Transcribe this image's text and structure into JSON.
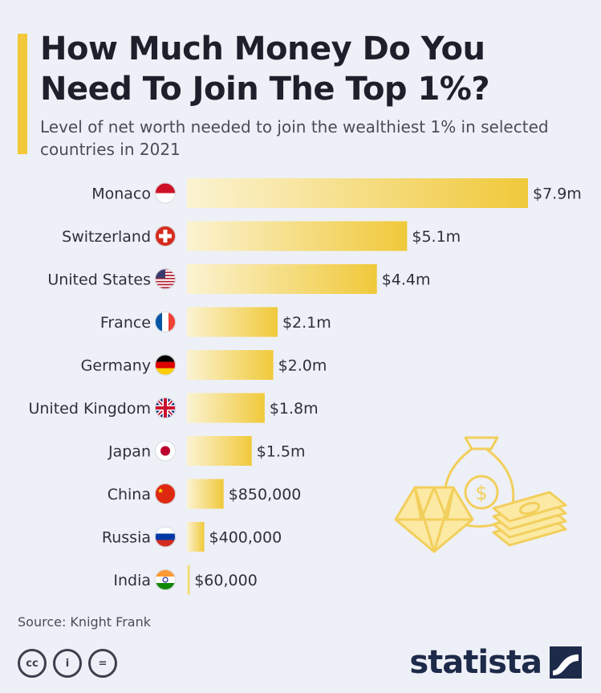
{
  "header": {
    "title": "How Much Money Do You Need To Join The Top 1%?",
    "subtitle": "Level of net worth needed to join the wealthiest 1% in selected countries in 2021"
  },
  "footer": {
    "source": "Source: Knight Frank",
    "brand": "statista",
    "license_icons": [
      "cc-icon",
      "attribution-icon",
      "no-derivatives-icon"
    ],
    "license_labels": [
      "cc",
      "i",
      "="
    ]
  },
  "colors": {
    "bar_start": "#fbf3d2",
    "bar_end": "#f0c93a",
    "accent": "#f2c73a",
    "background": "#eef0f7"
  },
  "chart_data": {
    "type": "bar",
    "orientation": "horizontal",
    "categories": [
      "Monaco",
      "Switzerland",
      "United States",
      "France",
      "Germany",
      "United Kingdom",
      "Japan",
      "China",
      "Russia",
      "India"
    ],
    "values": [
      7900000,
      5100000,
      4400000,
      2100000,
      2000000,
      1800000,
      1500000,
      850000,
      400000,
      60000
    ],
    "value_labels": [
      "$7.9m",
      "$5.1m",
      "$4.4m",
      "$2.1m",
      "$2.0m",
      "$1.8m",
      "$1.5m",
      "$850,000",
      "$400,000",
      "$60,000"
    ],
    "flags": [
      "monaco-flag-icon",
      "switzerland-flag-icon",
      "usa-flag-icon",
      "france-flag-icon",
      "germany-flag-icon",
      "uk-flag-icon",
      "japan-flag-icon",
      "china-flag-icon",
      "russia-flag-icon",
      "india-flag-icon"
    ],
    "xlim": [
      0,
      7900000
    ],
    "grid": false,
    "legend": "none"
  }
}
